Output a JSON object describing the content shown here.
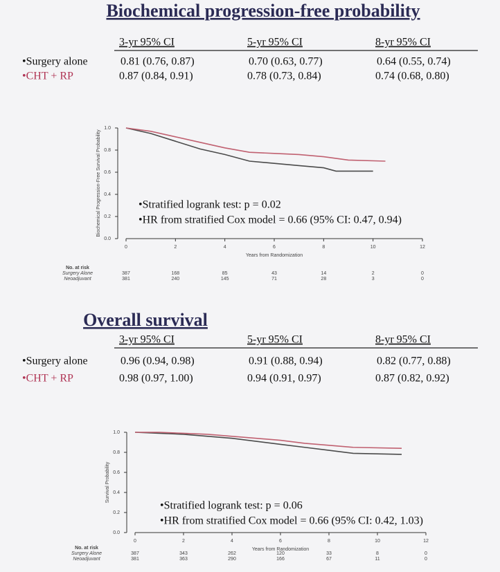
{
  "sections": [
    {
      "title": "Biochemical progression-free probability",
      "table": {
        "header": [
          "3-yr  95% CI",
          "5-yr  95% CI",
          "8-yr  95% CI"
        ],
        "rows": [
          [
            "•Surgery alone",
            "0.81  (0.76, 0.87)",
            "0.70  (0.63, 0.77)",
            "0.64  (0.55, 0.74)"
          ],
          [
            "•CHT + RP",
            "0.87  (0.84, 0.91)",
            "0.78  (0.73, 0.84)",
            "0.74  (0.68, 0.80)"
          ]
        ]
      },
      "chart": {
        "type": "line",
        "ylabel": "Biochemical Progression-Free Survival Probability",
        "xlabel": "Years from Randomization",
        "xlim": [
          0,
          12
        ],
        "ylim": [
          0,
          1
        ],
        "xticks": [
          0,
          2,
          4,
          6,
          8,
          10,
          12
        ],
        "yticks": [
          {
            "value": 0,
            "label": "0.0"
          },
          0.2,
          0.4,
          0.6,
          0.8,
          {
            "value": 1,
            "label": "1.0"
          }
        ],
        "series": [
          {
            "color": "#4a4a4a",
            "x": [
              0,
              1,
              2,
              3,
              4,
              5,
              6,
              7,
              8,
              8.5,
              10
            ],
            "values": [
              1,
              0.95,
              0.88,
              0.81,
              0.76,
              0.7,
              0.68,
              0.66,
              0.64,
              0.61,
              0.61
            ]
          },
          {
            "color": "#c06070",
            "x": [
              0,
              1,
              2,
              3,
              4,
              5,
              6,
              7,
              8,
              9,
              10.5
            ],
            "values": [
              1,
              0.97,
              0.92,
              0.87,
              0.82,
              0.78,
              0.77,
              0.76,
              0.74,
              0.71,
              0.7
            ]
          }
        ],
        "annotations": [
          "•Stratified logrank test:  p = 0.02",
          "•HR from stratified Cox model = 0.66 (95% CI: 0.47, 0.94)"
        ],
        "at_risk": {
          "title": "No. at risk",
          "rows": [
            {
              "label": "Surgery Alone",
              "values": [
                387,
                168,
                85,
                43,
                14,
                2,
                0
              ]
            },
            {
              "label": "Neoadjuvant",
              "values": [
                381,
                240,
                145,
                71,
                28,
                3,
                0
              ]
            }
          ]
        }
      }
    },
    {
      "title": "Overall survival",
      "table": {
        "header": [
          "3-yr  95% CI",
          "5-yr  95% CI",
          "8-yr  95% CI"
        ],
        "rows": [
          [
            "•Surgery alone",
            "0.96  (0.94, 0.98)",
            "0.91  (0.88, 0.94)",
            "0.82  (0.77, 0.88)"
          ],
          [
            "•CHT + RP",
            "0.98  (0.97, 1.00)",
            "0.94  (0.91, 0.97)",
            "0.87  (0.82, 0.92)"
          ]
        ]
      },
      "chart": {
        "type": "line",
        "ylabel": "Survival Probability",
        "xlabel": "Years from Randomization",
        "xlim": [
          0,
          12
        ],
        "ylim": [
          0,
          1
        ],
        "xticks": [
          0,
          2,
          4,
          6,
          8,
          10,
          12
        ],
        "yticks": [
          {
            "value": 0,
            "label": "0.0"
          },
          0.2,
          0.4,
          0.6,
          0.8,
          {
            "value": 1,
            "label": "1.0"
          }
        ],
        "series": [
          {
            "color": "#4a4a4a",
            "x": [
              0,
              1,
              2,
              3,
              4,
              5,
              6,
              7,
              8,
              9,
              11
            ],
            "values": [
              1,
              0.99,
              0.98,
              0.96,
              0.94,
              0.91,
              0.88,
              0.85,
              0.82,
              0.79,
              0.78
            ]
          },
          {
            "color": "#c06070",
            "x": [
              0,
              1,
              2,
              3,
              4,
              5,
              6,
              7,
              8,
              9,
              11
            ],
            "values": [
              1,
              1,
              0.99,
              0.98,
              0.96,
              0.94,
              0.92,
              0.89,
              0.87,
              0.85,
              0.84
            ]
          }
        ],
        "annotations": [
          "•Stratified logrank test:  p = 0.06",
          "•HR from stratified Cox model = 0.66 (95% CI: 0.42, 1.03)"
        ],
        "at_risk": {
          "title": "No. at risk",
          "rows": [
            {
              "label": "Surgery Alone",
              "values": [
                387,
                343,
                262,
                120,
                33,
                8,
                0
              ]
            },
            {
              "label": "Neoadjuvant",
              "values": [
                381,
                363,
                290,
                166,
                67,
                11,
                0
              ]
            }
          ]
        }
      }
    }
  ]
}
